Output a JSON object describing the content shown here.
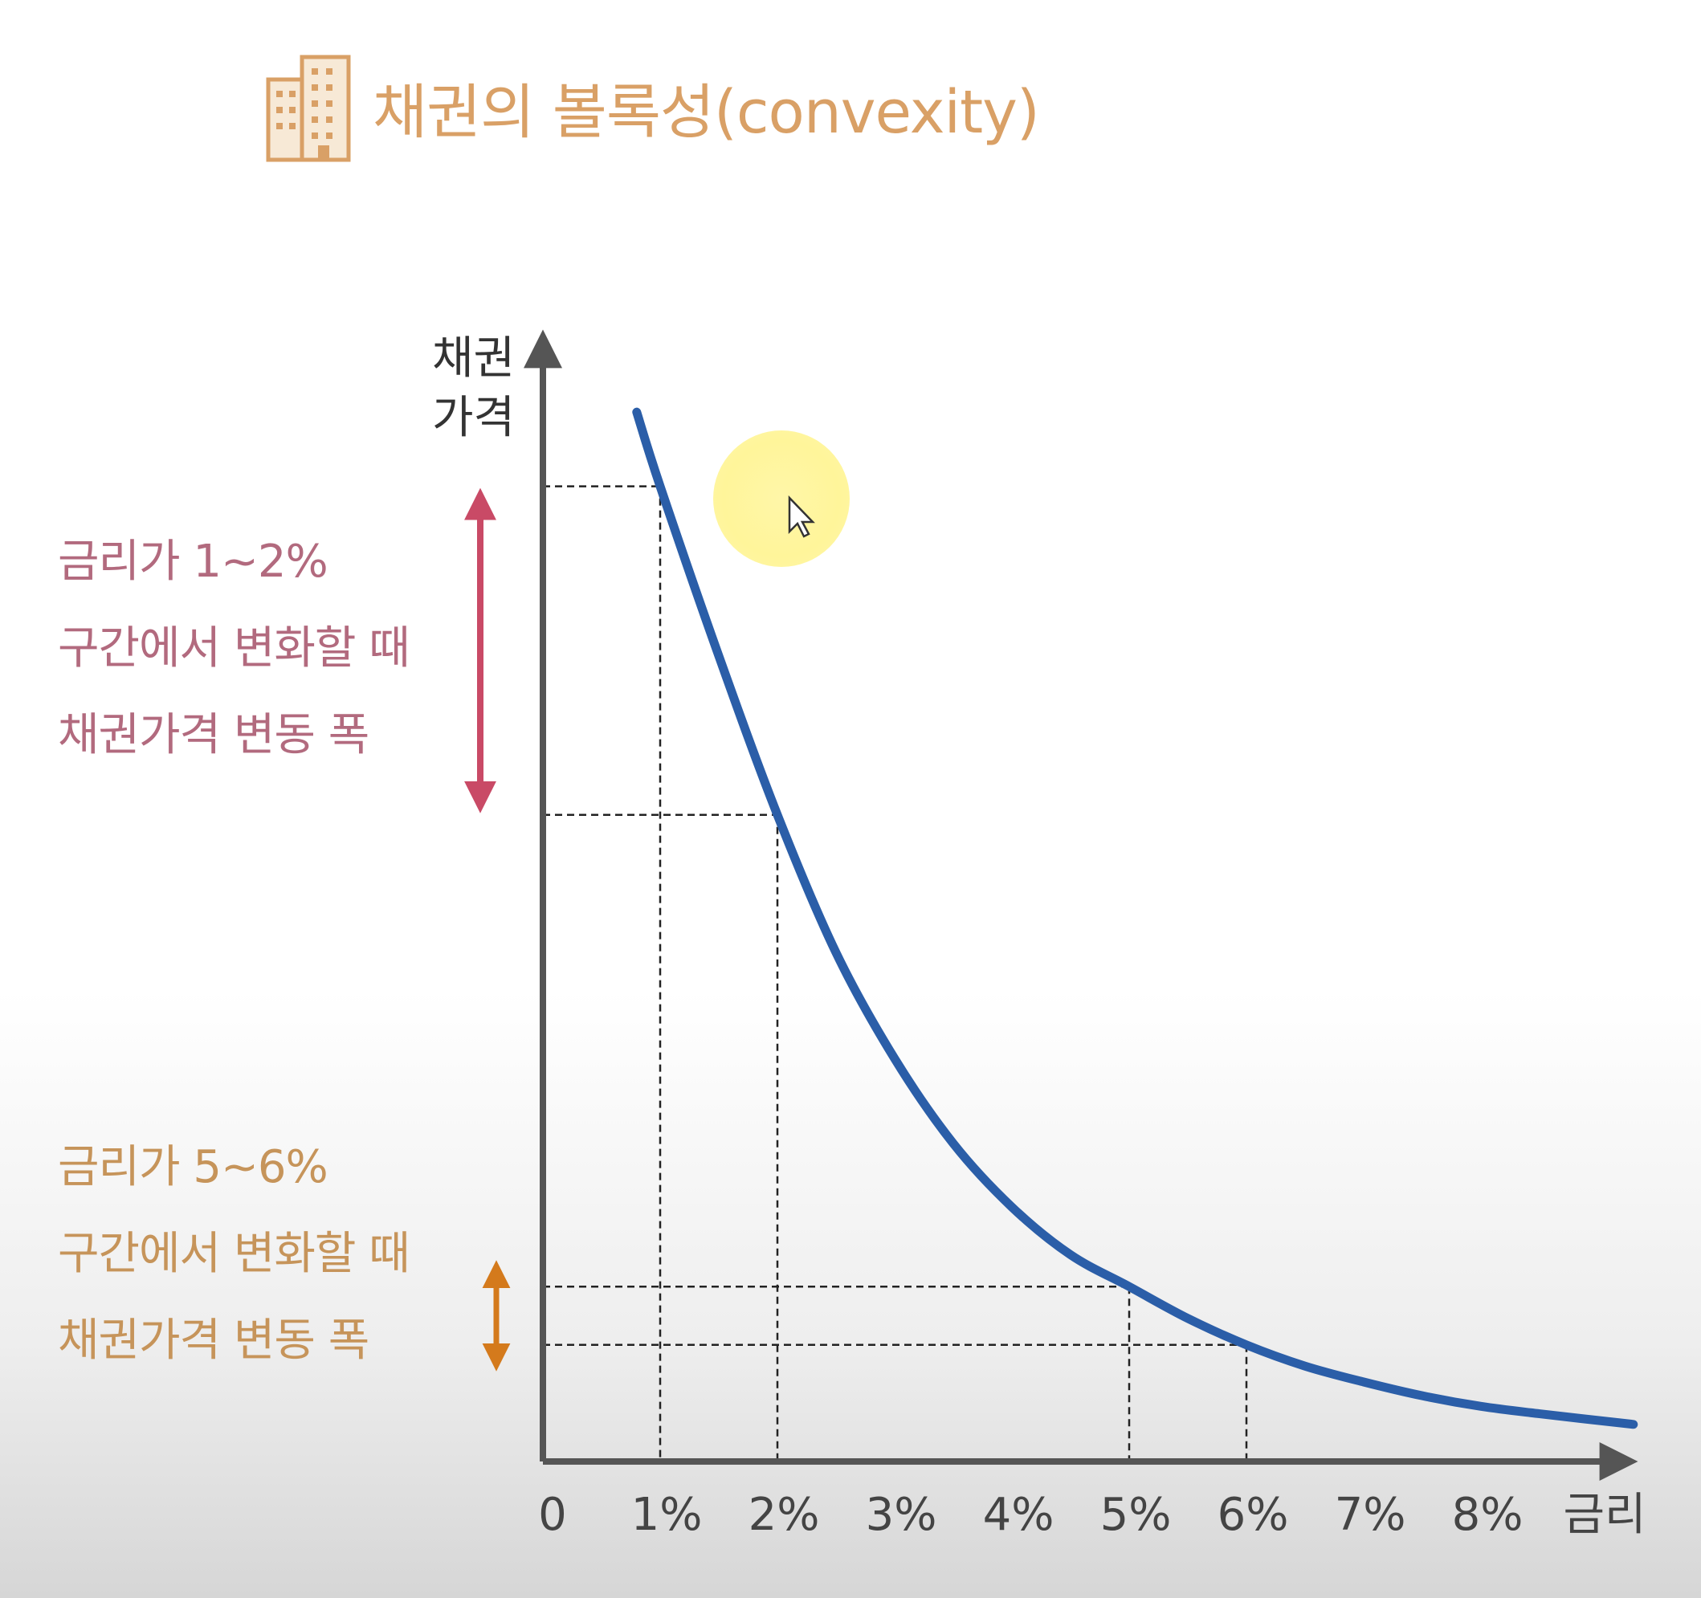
{
  "header": {
    "title": "채권의 볼록성(convexity)",
    "icon": "building-icon"
  },
  "annotations": {
    "top_range_lines": [
      "금리가 1~2%",
      "구간에서 변화할 때",
      "채권가격 변동 폭"
    ],
    "bottom_range_lines": [
      "금리가 5~6%",
      "구간에서 변화할 때",
      "채권가격 변동 폭"
    ]
  },
  "colors": {
    "curve": "#2b5ea8",
    "axis": "#555555",
    "top_range": "#c94a66",
    "bottom_range": "#d47a1c",
    "title": "#d9a066"
  },
  "chart_data": {
    "type": "line",
    "title": "채권의 볼록성(convexity)",
    "xlabel": "금리",
    "ylabel_lines": [
      "채권",
      "가격"
    ],
    "x_ticks": [
      "0",
      "1%",
      "2%",
      "3%",
      "4%",
      "5%",
      "6%",
      "7%",
      "8%",
      "금리"
    ],
    "xlim": [
      0,
      9
    ],
    "ylim": [
      0,
      100
    ],
    "grid": false,
    "series": [
      {
        "x": [
          0.8,
          1.0,
          1.5,
          2.0,
          2.5,
          3.0,
          3.5,
          4.0,
          4.5,
          5.0,
          5.5,
          6.0,
          6.5,
          7.0,
          7.5,
          8.0,
          8.5,
          9.3
        ],
        "y": [
          99,
          92,
          76,
          61,
          48,
          38,
          30,
          24,
          19.5,
          16.5,
          13.5,
          11,
          9,
          7.5,
          6.2,
          5.2,
          4.5,
          3.5
        ]
      }
    ],
    "reference_points": [
      {
        "x": 1,
        "y": 92
      },
      {
        "x": 2,
        "y": 61
      },
      {
        "x": 5,
        "y": 16.5
      },
      {
        "x": 6,
        "y": 11
      }
    ],
    "ranges": [
      {
        "from_x": 1,
        "to_x": 2
      },
      {
        "from_x": 5,
        "to_x": 6
      }
    ]
  }
}
